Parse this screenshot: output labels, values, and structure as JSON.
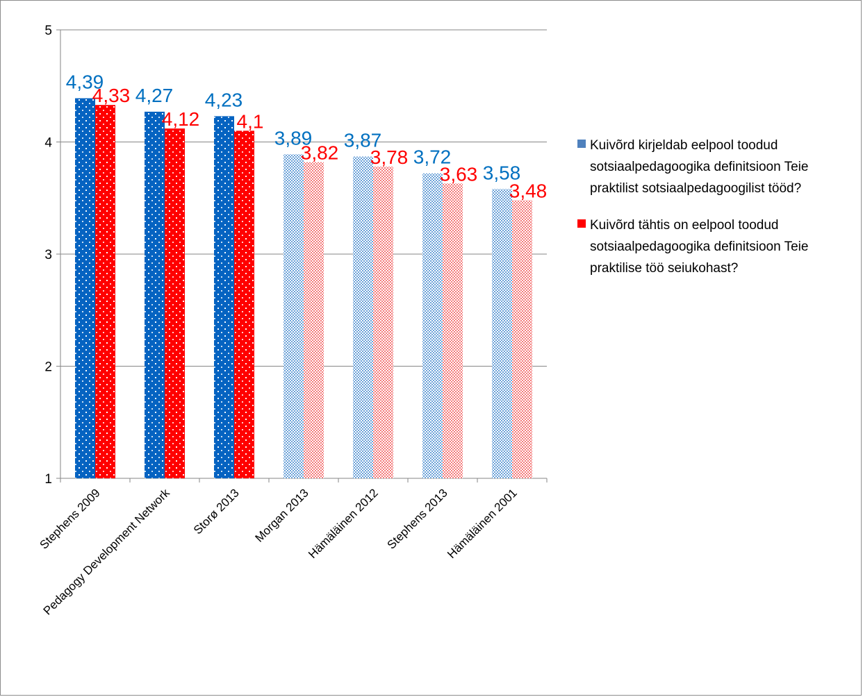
{
  "chart_data": {
    "type": "bar",
    "categories": [
      "Stephens 2009",
      "Pedagogy Development Network",
      "Storø 2013",
      "Morgan 2013",
      "Hämäläinen 2012",
      "Stephens 2013",
      "Hämäläinen 2001"
    ],
    "series": [
      {
        "name": "Kuivõrd kirjeldab eelpool toodud sotsiaalpedagoogika definitsioon Teie praktilist sotsiaalpedagoogilist tööd?",
        "values": [
          4.39,
          4.27,
          4.23,
          3.89,
          3.87,
          3.72,
          3.58
        ],
        "labels": [
          "4,39",
          "4,27",
          "4,23",
          "3,89",
          "3,87",
          "3,72",
          "3,58"
        ],
        "color": "#0563c1"
      },
      {
        "name": "Kuivõrd tähtis on eelpool toodud sotsiaalpedagoogika definitsioon Teie praktilise töö seiukohast?",
        "values": [
          4.33,
          4.12,
          4.1,
          3.82,
          3.78,
          3.63,
          3.48
        ],
        "labels": [
          "4,33",
          "4,12",
          "4,1",
          "3,82",
          "3,78",
          "3,63",
          "3,48"
        ],
        "color": "#ff0000"
      }
    ],
    "pattern_by_category": [
      "dots",
      "dots",
      "dots",
      "checker",
      "checker",
      "checker",
      "checker"
    ],
    "ylim": [
      1,
      5
    ],
    "yticks": [
      "1",
      "2",
      "3",
      "4",
      "5"
    ],
    "grid": true,
    "legend": "right",
    "title": "",
    "xlabel": "",
    "ylabel": ""
  }
}
